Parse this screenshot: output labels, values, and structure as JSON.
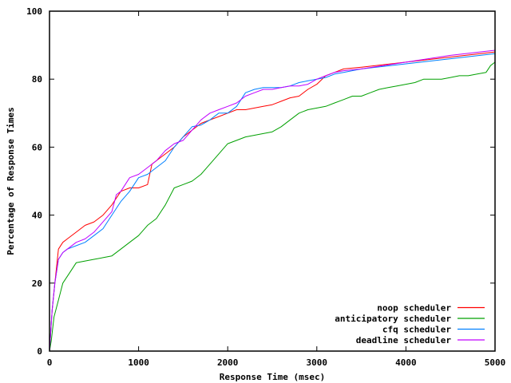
{
  "chart_data": {
    "type": "line",
    "title": "",
    "xlabel": "Response Time (msec)",
    "ylabel": "Percentage of Response Times",
    "xlim": [
      0,
      5000
    ],
    "ylim": [
      0,
      100
    ],
    "xticks": [
      0,
      1000,
      2000,
      3000,
      4000,
      5000
    ],
    "yticks": [
      0,
      20,
      40,
      60,
      80,
      100
    ],
    "grid": false,
    "legend_position": "bottom-right",
    "series": [
      {
        "name": "noop scheduler",
        "color": "#ff0000",
        "x": [
          0,
          30,
          60,
          100,
          150,
          200,
          300,
          400,
          500,
          600,
          700,
          800,
          900,
          1000,
          1100,
          1150,
          1200,
          1300,
          1400,
          1500,
          1600,
          1700,
          1800,
          1900,
          2000,
          2100,
          2200,
          2300,
          2400,
          2500,
          2600,
          2700,
          2800,
          2900,
          3000,
          3100,
          3200,
          3300,
          3500,
          4000,
          4500,
          5000
        ],
        "y": [
          0,
          12,
          20,
          30,
          32,
          33,
          35,
          37,
          38,
          40,
          43,
          47,
          48,
          48,
          49,
          55,
          56,
          58,
          60,
          63,
          65,
          67,
          68,
          69,
          70,
          71,
          71,
          71.5,
          72,
          72.5,
          73.5,
          74.5,
          75,
          77,
          78.5,
          81,
          82,
          83,
          83.5,
          85,
          86.5,
          88
        ]
      },
      {
        "name": "anticipatory scheduler",
        "color": "#00a000",
        "x": [
          0,
          20,
          50,
          100,
          150,
          200,
          250,
          300,
          400,
          500,
          600,
          700,
          800,
          900,
          1000,
          1100,
          1200,
          1300,
          1400,
          1500,
          1600,
          1700,
          1800,
          1900,
          2000,
          2100,
          2200,
          2300,
          2400,
          2500,
          2600,
          2700,
          2800,
          2900,
          3000,
          3100,
          3200,
          3300,
          3400,
          3500,
          3600,
          3700,
          3800,
          3900,
          4000,
          4100,
          4200,
          4300,
          4400,
          4500,
          4600,
          4700,
          4800,
          4900,
          4950,
          5000
        ],
        "y": [
          0,
          3,
          10,
          15,
          20,
          22,
          24,
          26,
          26.5,
          27,
          27.5,
          28,
          30,
          32,
          34,
          37,
          39,
          43,
          48,
          49,
          50,
          52,
          55,
          58,
          61,
          62,
          63,
          63.5,
          64,
          64.5,
          66,
          68,
          70,
          71,
          71.5,
          72,
          73,
          74,
          75,
          75,
          76,
          77,
          77.5,
          78,
          78.5,
          79,
          80,
          80,
          80,
          80.5,
          81,
          81,
          81.5,
          82,
          84,
          85
        ]
      },
      {
        "name": "cfq scheduler",
        "color": "#0080ff",
        "x": [
          0,
          30,
          60,
          100,
          150,
          200,
          300,
          400,
          500,
          600,
          700,
          800,
          900,
          1000,
          1100,
          1200,
          1300,
          1400,
          1500,
          1600,
          1700,
          1800,
          1900,
          2000,
          2100,
          2200,
          2300,
          2400,
          2500,
          2600,
          2700,
          2800,
          2900,
          3000,
          3100,
          3200,
          3300,
          3500,
          4000,
          4500,
          5000
        ],
        "y": [
          0,
          12,
          20,
          27,
          29,
          30,
          31,
          32,
          34,
          36,
          40,
          44,
          47,
          51,
          52,
          54,
          56,
          60,
          63,
          66,
          66.5,
          68,
          70,
          70,
          72,
          76,
          77,
          77.5,
          77.5,
          77.5,
          78,
          79,
          79.5,
          80,
          80.5,
          81.5,
          82,
          83,
          84.5,
          86,
          87.5
        ]
      },
      {
        "name": "deadline scheduler",
        "color": "#c000ff",
        "x": [
          0,
          30,
          60,
          100,
          150,
          200,
          300,
          400,
          500,
          600,
          700,
          750,
          800,
          900,
          1000,
          1100,
          1200,
          1300,
          1400,
          1500,
          1600,
          1700,
          1800,
          1900,
          2000,
          2100,
          2200,
          2300,
          2400,
          2500,
          2600,
          2700,
          2800,
          2900,
          3000,
          3100,
          3200,
          3300,
          3500,
          4000,
          4500,
          5000
        ],
        "y": [
          0,
          12,
          20,
          27,
          29,
          30,
          32,
          33,
          35,
          38,
          41,
          46,
          47,
          51,
          52,
          54,
          56,
          59,
          61,
          62,
          65,
          68,
          70,
          71,
          72,
          73,
          75,
          76,
          77,
          77,
          77.5,
          78,
          78,
          78.5,
          80,
          81,
          82,
          82.5,
          83,
          85,
          87,
          88.5
        ]
      }
    ]
  }
}
